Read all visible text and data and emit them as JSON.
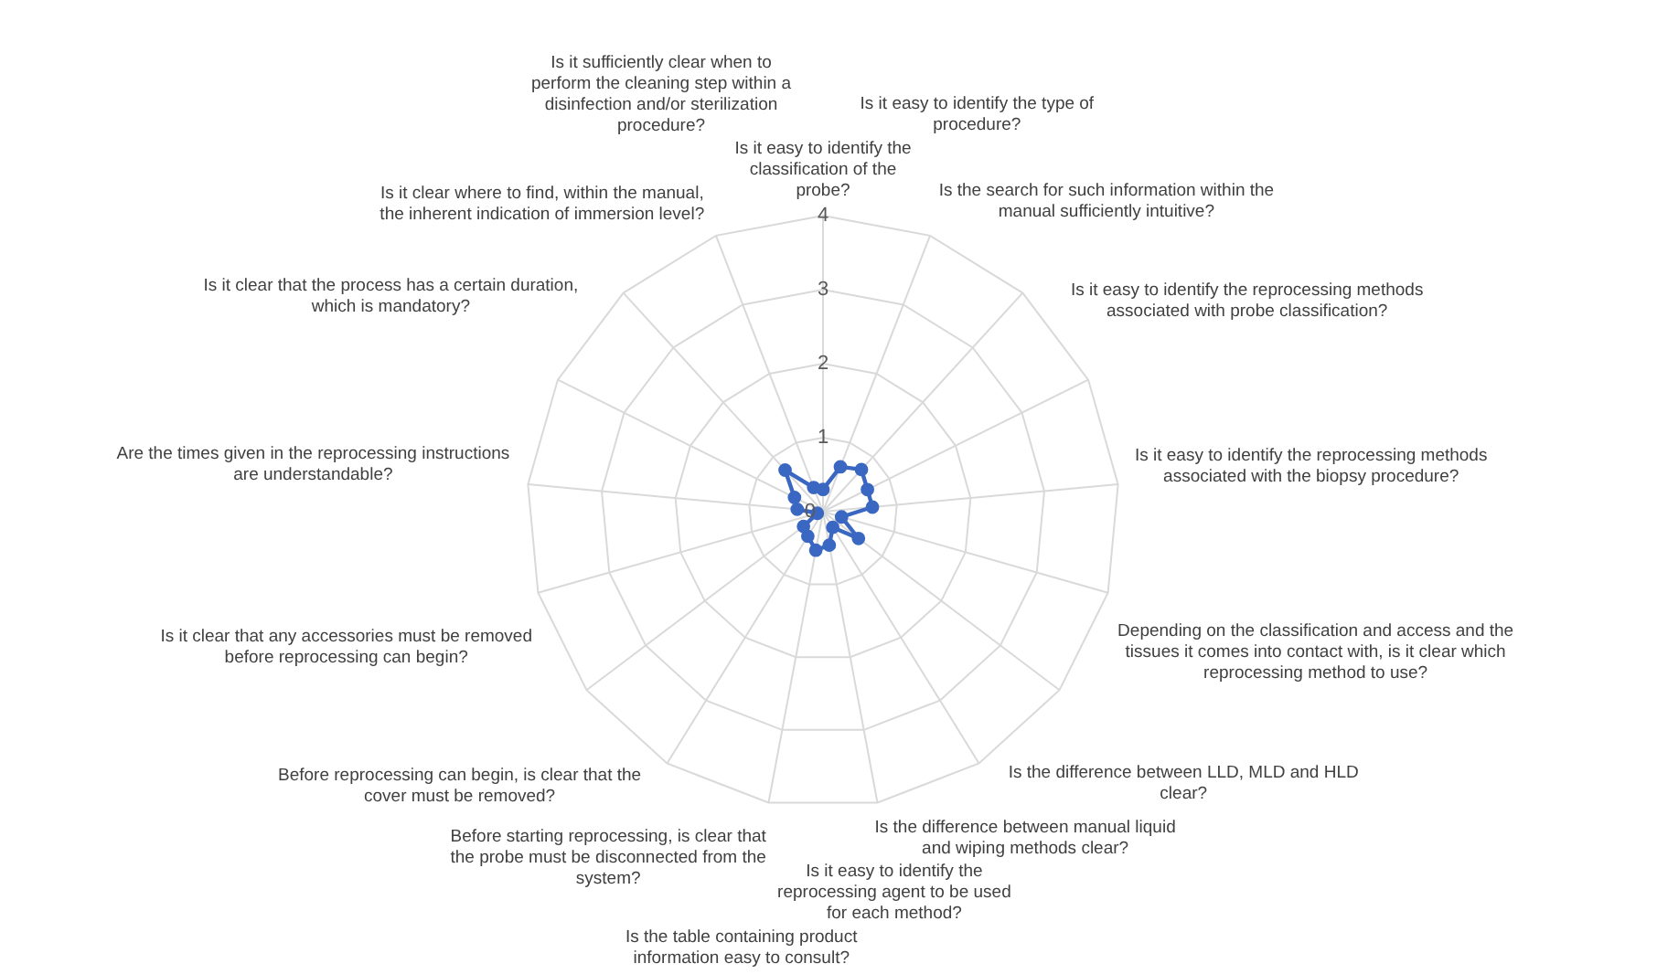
{
  "chart_data": {
    "type": "radar",
    "categories": [
      "Is it easy to identify the classification of the probe?",
      "Is it easy to identify the type of procedure?",
      "Is the search for such information within the manual sufficiently intuitive?",
      "Is it easy to identify the reprocessing methods associated with probe classification?",
      "Is it easy to identify the reprocessing methods associated with the biopsy procedure?",
      "Depending on the classification and access and the tissues it comes into contact with, is it clear which reprocessing method to use?",
      "Is the difference between LLD, MLD and HLD clear?",
      "Is the difference between manual liquid and wiping methods clear?",
      "Is it easy to identify the reprocessing agent to be used for each method?",
      "Is the table containing product information easy to consult?",
      "Before starting reprocessing, is clear that the probe must be disconnected from the system?",
      "Before reprocessing can begin, is clear that the cover must be removed?",
      "Is it clear that any accessories must be removed before reprocessing can begin?",
      "Are the times given in the reprocessing instructions are understandable?",
      "Is it clear that the process has a certain duration, which is mandatory?",
      "Is it clear where to find, within the manual, the inherent indication of immersion level?",
      "Is it sufficiently clear when to perform the cleaning step within a disinfection and/or sterilization procedure?"
    ],
    "series": [
      {
        "color": "#3a67c2",
        "values": [
          0.3,
          0.65,
          0.77,
          0.67,
          0.67,
          0.26,
          0.6,
          0.25,
          0.46,
          0.53,
          0.39,
          0.33,
          0.08,
          0.35,
          0.43,
          0.76,
          0.35
        ]
      }
    ],
    "ylim": [
      0,
      4
    ],
    "yticks": [
      0,
      1,
      2,
      3,
      4
    ],
    "grid": true,
    "marker": "circle",
    "line_style": "solid"
  }
}
